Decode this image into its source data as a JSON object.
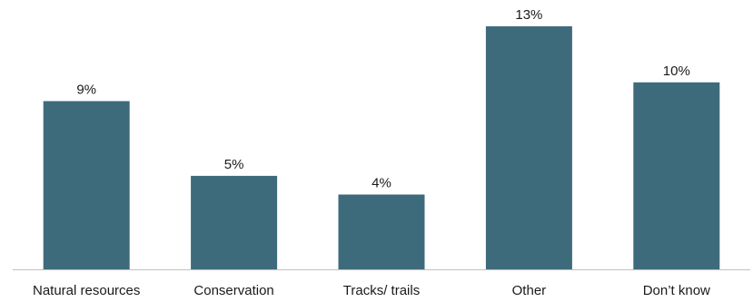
{
  "chart_data": {
    "type": "bar",
    "title": "",
    "xlabel": "",
    "ylabel": "",
    "categories": [
      "Natural resources",
      "Conservation",
      "Tracks/ trails",
      "Other",
      "Don’t know"
    ],
    "values": [
      9,
      5,
      4,
      13,
      10
    ],
    "value_labels": [
      "9%",
      "5%",
      "4%",
      "13%",
      "10%"
    ],
    "unit": "%",
    "ylim": [
      0,
      13
    ],
    "grid": false,
    "legend": "none",
    "bar_color": "#3e6b7c",
    "axis_color": "#c0c0c0"
  }
}
